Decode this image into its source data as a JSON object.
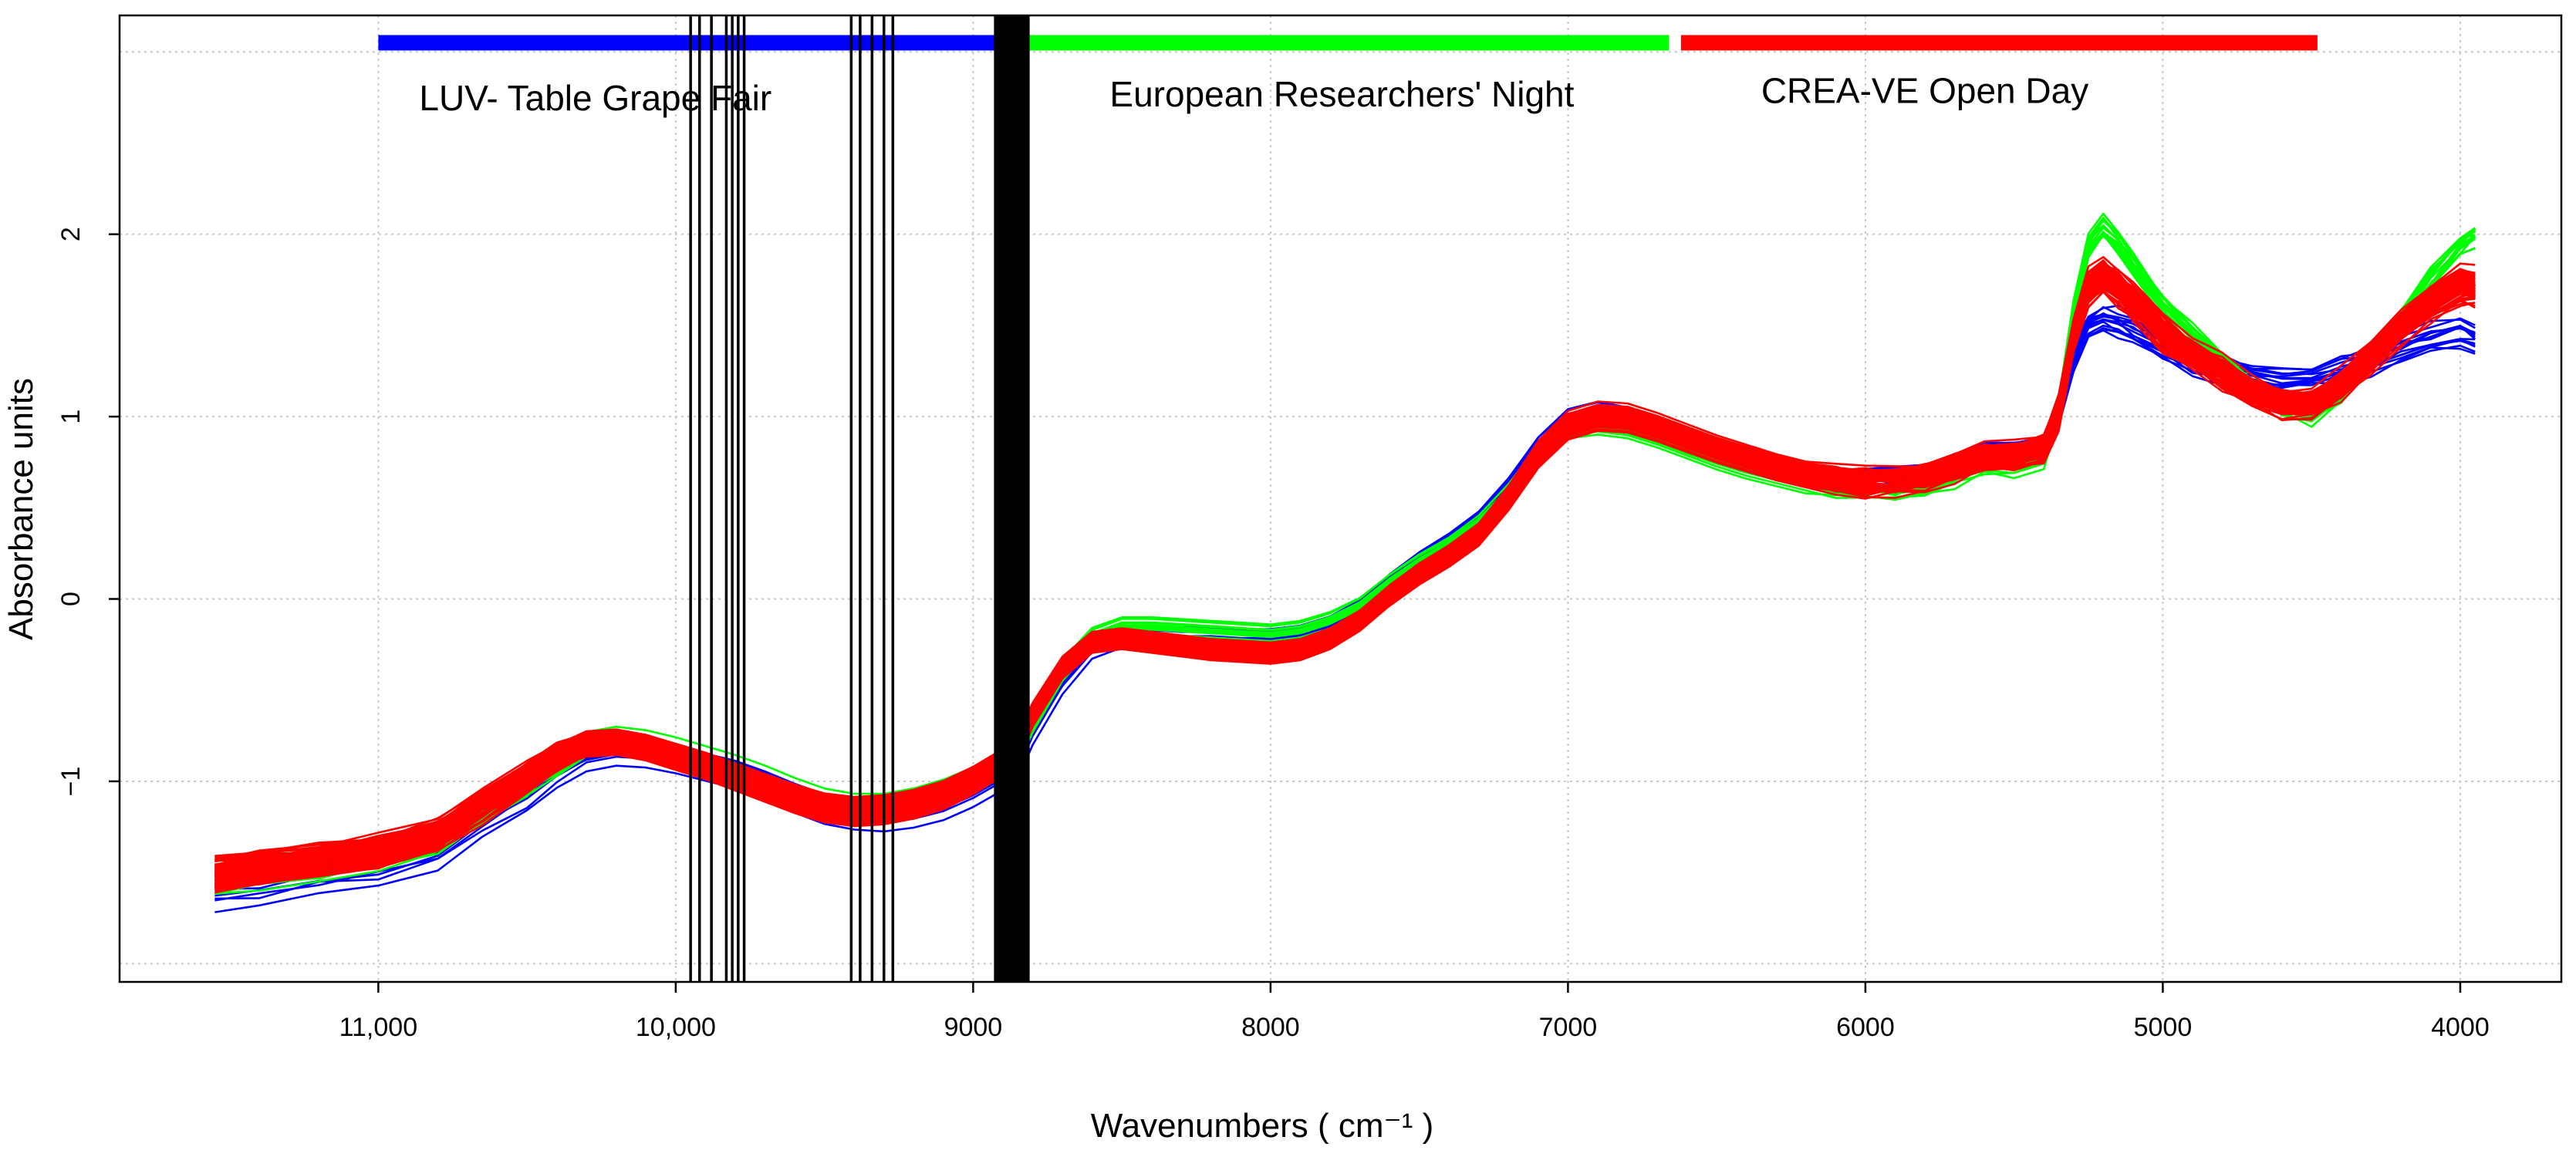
{
  "chart_data": {
    "type": "line",
    "title": "",
    "xlabel": "Wavenumbers ( cm⁻¹ )",
    "ylabel": "Absorbance units",
    "x_reversed": true,
    "xlim": [
      11870,
      3660
    ],
    "ylim": [
      -2.1,
      3.2
    ],
    "grid": true,
    "x_ticks": [
      {
        "value": 11000,
        "label": "11,000"
      },
      {
        "value": 10000,
        "label": "10,000"
      },
      {
        "value": 9000,
        "label": "9000"
      },
      {
        "value": 8000,
        "label": "8000"
      },
      {
        "value": 7000,
        "label": "7000"
      },
      {
        "value": 6000,
        "label": "6000"
      },
      {
        "value": 5000,
        "label": "5000"
      },
      {
        "value": 4000,
        "label": "4000"
      }
    ],
    "y_ticks": [
      {
        "value": -1,
        "label": "−1"
      },
      {
        "value": 0,
        "label": "0"
      },
      {
        "value": 1,
        "label": "1"
      },
      {
        "value": 2,
        "label": "2"
      }
    ],
    "grid_x": [
      11000,
      10000,
      9000,
      8000,
      7000,
      6000,
      5000,
      4000
    ],
    "grid_y": [
      -2,
      -1,
      0,
      1,
      2,
      3
    ],
    "event_bars": [
      {
        "name": "LUV- Table Grape Fair",
        "color": "#0000ff",
        "x_start": 11000,
        "x_end": 8800
      },
      {
        "name": "European Researchers' Night",
        "color": "#00ff00",
        "x_start": 8850,
        "x_end": 6660
      },
      {
        "name": "CREA-VE Open Day",
        "color": "#ff0000",
        "x_start": 6620,
        "x_end": 4480
      }
    ],
    "event_bar_y": 3.05,
    "event_labels": [
      {
        "text": "LUV- Table Grape Fair",
        "x": 10270,
        "y": 2.68
      },
      {
        "text": "European Researchers' Night",
        "x": 7760,
        "y": 2.7
      },
      {
        "text": "CREA-VE Open Day",
        "x": 5800,
        "y": 2.72
      }
    ],
    "selected_wavenumbers": [
      9950,
      9920,
      9880,
      9830,
      9810,
      9790,
      9770,
      9410,
      9380,
      9340,
      9300,
      9270
    ],
    "selected_band": [
      8930,
      8810
    ],
    "series_x": [
      11550,
      11400,
      11200,
      11000,
      10800,
      10650,
      10500,
      10400,
      10300,
      10200,
      10100,
      10000,
      9900,
      9800,
      9700,
      9600,
      9500,
      9400,
      9300,
      9200,
      9100,
      9000,
      8900,
      8850,
      8800,
      8700,
      8600,
      8500,
      8400,
      8300,
      8200,
      8100,
      8000,
      7900,
      7800,
      7700,
      7600,
      7500,
      7400,
      7300,
      7200,
      7100,
      7000,
      6900,
      6800,
      6700,
      6600,
      6500,
      6400,
      6300,
      6200,
      6100,
      6000,
      5900,
      5800,
      5700,
      5600,
      5500,
      5400,
      5350,
      5300,
      5250,
      5200,
      5150,
      5100,
      5000,
      4900,
      4800,
      4700,
      4600,
      4500,
      4400,
      4300,
      4200,
      4100,
      4000,
      3950
    ],
    "series": [
      {
        "color": "#0000ff",
        "values": [
          -1.6,
          -1.56,
          -1.52,
          -1.47,
          -1.38,
          -1.22,
          -1.08,
          -0.95,
          -0.86,
          -0.83,
          -0.84,
          -0.87,
          -0.91,
          -0.95,
          -1.01,
          -1.08,
          -1.14,
          -1.17,
          -1.18,
          -1.16,
          -1.12,
          -1.05,
          -0.96,
          -0.9,
          -0.72,
          -0.45,
          -0.26,
          -0.2,
          -0.2,
          -0.21,
          -0.21,
          -0.22,
          -0.22,
          -0.2,
          -0.15,
          -0.06,
          0.08,
          0.2,
          0.3,
          0.42,
          0.6,
          0.82,
          0.97,
          1.01,
          0.98,
          0.93,
          0.87,
          0.81,
          0.76,
          0.72,
          0.68,
          0.65,
          0.64,
          0.64,
          0.67,
          0.72,
          0.78,
          0.78,
          0.81,
          1.0,
          1.32,
          1.48,
          1.52,
          1.5,
          1.46,
          1.37,
          1.3,
          1.24,
          1.2,
          1.18,
          1.2,
          1.24,
          1.3,
          1.36,
          1.42,
          1.45,
          1.42
        ]
      },
      {
        "color": "#00ff00",
        "values": [
          -1.57,
          -1.52,
          -1.48,
          -1.43,
          -1.34,
          -1.18,
          -1.03,
          -0.9,
          -0.81,
          -0.78,
          -0.8,
          -0.84,
          -0.89,
          -0.94,
          -1.0,
          -1.07,
          -1.13,
          -1.16,
          -1.16,
          -1.13,
          -1.08,
          -1.01,
          -0.92,
          -0.86,
          -0.68,
          -0.4,
          -0.22,
          -0.16,
          -0.16,
          -0.17,
          -0.18,
          -0.19,
          -0.2,
          -0.18,
          -0.13,
          -0.05,
          0.08,
          0.19,
          0.28,
          0.4,
          0.57,
          0.78,
          0.92,
          0.94,
          0.92,
          0.87,
          0.81,
          0.75,
          0.7,
          0.66,
          0.62,
          0.59,
          0.58,
          0.58,
          0.61,
          0.66,
          0.72,
          0.72,
          0.76,
          1.02,
          1.55,
          1.93,
          2.02,
          1.94,
          1.82,
          1.6,
          1.44,
          1.3,
          1.16,
          1.05,
          0.99,
          1.1,
          1.3,
          1.52,
          1.74,
          1.92,
          1.98
        ]
      },
      {
        "color": "#ff0000",
        "values": [
          -1.52,
          -1.48,
          -1.44,
          -1.39,
          -1.3,
          -1.14,
          -0.99,
          -0.87,
          -0.8,
          -0.79,
          -0.82,
          -0.87,
          -0.92,
          -0.98,
          -1.04,
          -1.1,
          -1.15,
          -1.17,
          -1.16,
          -1.13,
          -1.08,
          -1.0,
          -0.9,
          -0.83,
          -0.64,
          -0.38,
          -0.24,
          -0.22,
          -0.24,
          -0.26,
          -0.28,
          -0.29,
          -0.3,
          -0.28,
          -0.22,
          -0.12,
          0.02,
          0.14,
          0.24,
          0.36,
          0.56,
          0.8,
          0.96,
          1.01,
          1.0,
          0.95,
          0.89,
          0.83,
          0.78,
          0.73,
          0.69,
          0.66,
          0.65,
          0.65,
          0.68,
          0.73,
          0.79,
          0.79,
          0.83,
          1.03,
          1.45,
          1.72,
          1.78,
          1.72,
          1.64,
          1.47,
          1.35,
          1.25,
          1.15,
          1.08,
          1.08,
          1.18,
          1.34,
          1.5,
          1.64,
          1.74,
          1.72
        ]
      }
    ]
  }
}
